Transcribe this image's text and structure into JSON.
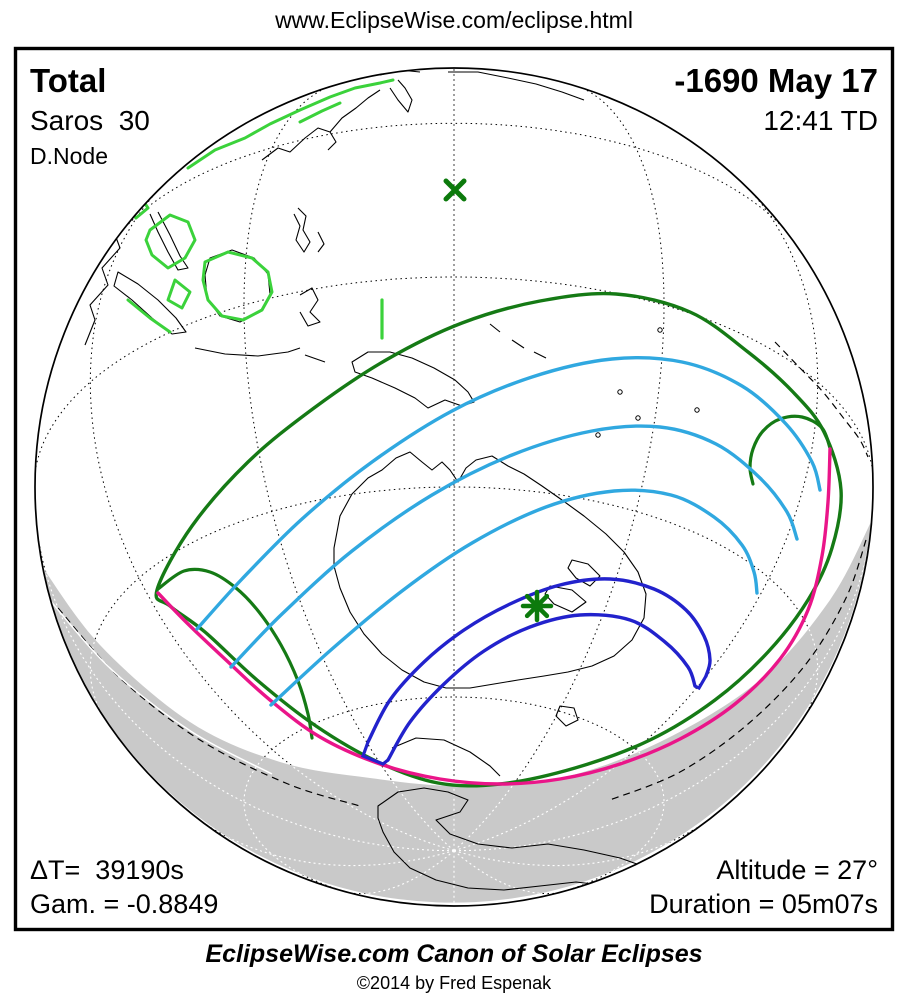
{
  "header": {
    "url": "www.EclipseWise.com/eclipse.html"
  },
  "info": {
    "type_label": "Total",
    "saros_label": "Saros  30",
    "node_label": "D.Node",
    "date_label": "-1690 May 17",
    "time_label": "12:41 TD",
    "delta_t_label": "ΔT=  39190s",
    "gamma_label": "Gam. = -0.8849",
    "altitude_label": "Altitude = 27°",
    "duration_label": "Duration = 05m07s"
  },
  "footer": {
    "title": "EclipseWise.com Canon of Solar Eclipses",
    "copyright": "©2014 by Fred Espenak"
  },
  "map": {
    "projection": "orthographic-globe",
    "features": [
      "penumbra-outer-limit",
      "penumbra-inner-loops",
      "eclipse-magnitude-contours",
      "umbra-path-limits",
      "sunrise-sunset-curve",
      "night-shade-region",
      "coastlines",
      "graticule"
    ],
    "markers": [
      {
        "name": "greatest-eclipse-marker",
        "symbol": "asterisk",
        "color": "#0c7a0c"
      },
      {
        "name": "sub-solar-point-marker",
        "symbol": "x",
        "color": "#0c7a0c"
      }
    ],
    "colors": {
      "background": "#ffffff",
      "outline": "#000000",
      "night_shade": "#c9c9c9",
      "penumbra_green": "#157a15",
      "magnitude_cyan": "#30a8e0",
      "umbra_blue": "#2222cc",
      "sunset_magenta": "#ea1589",
      "coast_highlight_green": "#3bd23b",
      "graticule_night": "#ffffff"
    }
  }
}
